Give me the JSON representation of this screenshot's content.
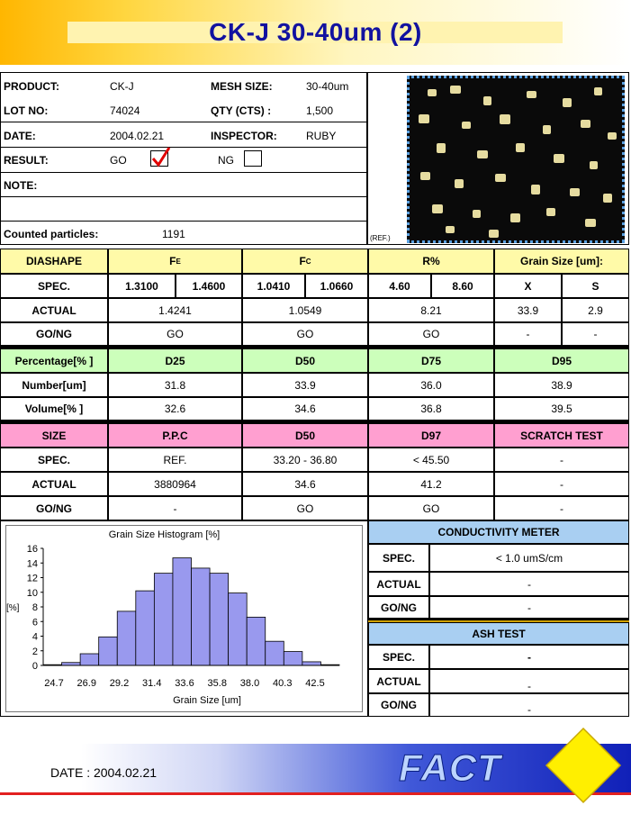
{
  "header": {
    "title": "CK-J 30-40um (2)"
  },
  "info": {
    "product_label": "PRODUCT:",
    "product_value": "CK-J",
    "mesh_label": "MESH SIZE:",
    "mesh_value": "30-40um",
    "lot_label": "LOT NO:",
    "lot_value": "74024",
    "qty_label": "QTY (CTS) :",
    "qty_value": "1,500",
    "date_label": "DATE:",
    "date_value": "2004.02.21",
    "inspector_label": "INSPECTOR:",
    "inspector_value": "RUBY",
    "result_label": "RESULT:",
    "go_label": "GO",
    "ng_label": "NG",
    "note_label": "NOTE:",
    "counted_label": "Counted particles:",
    "counted_value": "1191",
    "ref_label": "(REF.)"
  },
  "table1": {
    "col0": "DIASHAPE",
    "fe": "F",
    "fe_sub": "E",
    "fc": "F",
    "fc_sub": "C",
    "r": "R%",
    "grain": "Grain Size [um]:",
    "spec_label": "SPEC.",
    "spec": [
      "1.3100",
      "1.4600",
      "1.0410",
      "1.0660",
      "4.60",
      "8.60",
      "X",
      "S"
    ],
    "actual_label": "ACTUAL",
    "actual": [
      "1.4241",
      "1.0549",
      "8.21",
      "33.9",
      "2.9"
    ],
    "gong_label": "GO/NG",
    "gong": [
      "GO",
      "GO",
      "GO",
      "-",
      "-"
    ]
  },
  "table2": {
    "col0": "Percentage[% ]",
    "cols": [
      "D25",
      "D50",
      "D75",
      "D95"
    ],
    "number_label": "Number[um]",
    "number": [
      "31.8",
      "33.9",
      "36.0",
      "38.9"
    ],
    "volume_label": "Volume[% ]",
    "volume": [
      "32.6",
      "34.6",
      "36.8",
      "39.5"
    ]
  },
  "table3": {
    "col0": "SIZE",
    "cols": [
      "P.P.C",
      "D50",
      "D97",
      "SCRATCH TEST"
    ],
    "spec_label": "SPEC.",
    "spec": [
      "REF.",
      "33.20 - 36.80",
      "< 45.50",
      "-"
    ],
    "actual_label": "ACTUAL",
    "actual": [
      "3880964",
      "34.6",
      "41.2",
      "-"
    ],
    "gong_label": "GO/NG",
    "gong": [
      "-",
      "GO",
      "GO",
      "-"
    ]
  },
  "conductivity": {
    "title": "CONDUCTIVITY METER",
    "spec_label": "SPEC.",
    "spec": "< 1.0 umS/cm",
    "actual_label": "ACTUAL",
    "actual": "-",
    "gong_label": "GO/NG",
    "gong": "-"
  },
  "ash": {
    "title": "ASH TEST",
    "spec_label": "SPEC.",
    "spec": "-",
    "actual_label": "ACTUAL",
    "actual": "-",
    "gong_label": "GO/NG",
    "gong": "-"
  },
  "chart_data": {
    "type": "bar",
    "title": "Grain Size Histogram [%]",
    "xlabel": "Grain Size [um]",
    "ylabel": "[%]",
    "ylim": [
      0,
      16
    ],
    "yticks": [
      0,
      2,
      4,
      6,
      8,
      10,
      12,
      14,
      16
    ],
    "xtick_labels": [
      "24.7",
      "26.9",
      "29.2",
      "31.4",
      "33.6",
      "35.8",
      "38.0",
      "40.3",
      "42.5"
    ],
    "values": [
      0.1,
      0.4,
      1.6,
      3.9,
      7.4,
      10.2,
      12.6,
      14.7,
      13.3,
      12.6,
      9.9,
      6.6,
      3.3,
      1.9,
      0.5,
      0.1
    ],
    "bar_color": "#9999ee"
  },
  "footer": {
    "date": "DATE : 2004.02.21",
    "logo": "FACT"
  }
}
